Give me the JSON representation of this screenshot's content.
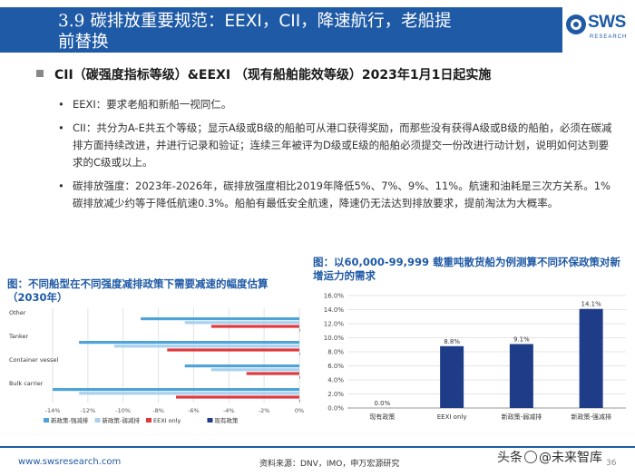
{
  "header": {
    "title_num": "3.9",
    "title_text_1": "碳排放重要规范：EEXI，CII，降速航行，老船提",
    "title_text_2": "前替换",
    "logo_text": "SWS",
    "logo_sub": "RESEARCH"
  },
  "content": {
    "sub_heading": "CII（碳强度指标等级）&EEXI （现有船舶能效等级）2023年1月1日起实施",
    "bullets": [
      "EEXI：要求老船和新船一视同仁。",
      "CII：共分为A-E共五个等级；显示A级或B级的船舶可从港口获得奖励，而那些没有获得A级或B级的船舶，必须在碳减排方面持续改进，并进行记录和验证；连续三年被评为D级或E级的船舶必须提交一份改进行动计划，说明如何达到要求的C级或以上。",
      "碳排放强度：2023年-2026年，碳排放强度相比2019年降低5%、7%、9%、11%。航速和油耗是三次方关系。1%碳排放减少约等于降低航速0.3%。船舶有最低安全航速，降速仍无法达到排放要求，提前淘汰为大概率。"
    ],
    "bullet_mark": "•"
  },
  "figures": {
    "left_title": "图：不同船型在不同强度减排政策下需要减速的幅度估算（2030年）",
    "right_title": "图：以60,000-99,999 载重吨散货船为例测算不同环保政策对新增运力的需求"
  },
  "chart_data": [
    {
      "type": "bar",
      "orientation": "horizontal",
      "title": "",
      "categories": [
        "Other",
        "Tanker",
        "Container vessel",
        "Bulk carrier"
      ],
      "series": [
        {
          "name": "新政策-强减排",
          "color": "#4ea3d8",
          "values": [
            -9.0,
            -12.5,
            -6.5,
            -14.0
          ]
        },
        {
          "name": "新政策-弱减排",
          "color": "#a8d1ee",
          "values": [
            -6.5,
            -10.5,
            -5.0,
            -12.5
          ]
        },
        {
          "name": "EEXI only",
          "color": "#e0393e",
          "values": [
            -5.0,
            -7.5,
            -3.0,
            -7.0
          ]
        },
        {
          "name": "现有政策",
          "color": "#1f3c88",
          "values": [
            0,
            0,
            0,
            0
          ]
        }
      ],
      "xlim": [
        -14,
        0
      ],
      "ticks": [
        "-14%",
        "-12%",
        "-10%",
        "-8%",
        "-6%",
        "-4%",
        "-2%",
        "0%"
      ],
      "tick_values": [
        -14,
        -12,
        -10,
        -8,
        -6,
        -4,
        -2,
        0
      ],
      "grid": true,
      "legend_position": "bottom"
    },
    {
      "type": "bar",
      "title": "",
      "categories": [
        "现有政策",
        "EEXI only",
        "新政策-弱减排",
        "新政策-强减排"
      ],
      "values": [
        0.0,
        8.8,
        9.1,
        14.1
      ],
      "data_labels": [
        "0.0%",
        "8.8%",
        "9.1%",
        "14.1%"
      ],
      "ylim": [
        0,
        16
      ],
      "ticks": [
        "0.0%",
        "2.0%",
        "4.0%",
        "6.0%",
        "8.0%",
        "10.0%",
        "12.0%",
        "14.0%",
        "16.0%"
      ],
      "tick_values": [
        0,
        2,
        4,
        6,
        8,
        10,
        12,
        14,
        16
      ],
      "color": "#1f3c88",
      "grid": true
    }
  ],
  "footer": {
    "url": "www.swsresearch.com",
    "source": "资料来源：DNV，IMO，申万宏源研究",
    "watermark_pre": "头条",
    "watermark_at": "@",
    "watermark_name": "未来智库",
    "page": "36"
  },
  "colors": {
    "brand": "#1f5aa6",
    "dark_blue": "#1f3c88",
    "red": "#e0393e"
  }
}
